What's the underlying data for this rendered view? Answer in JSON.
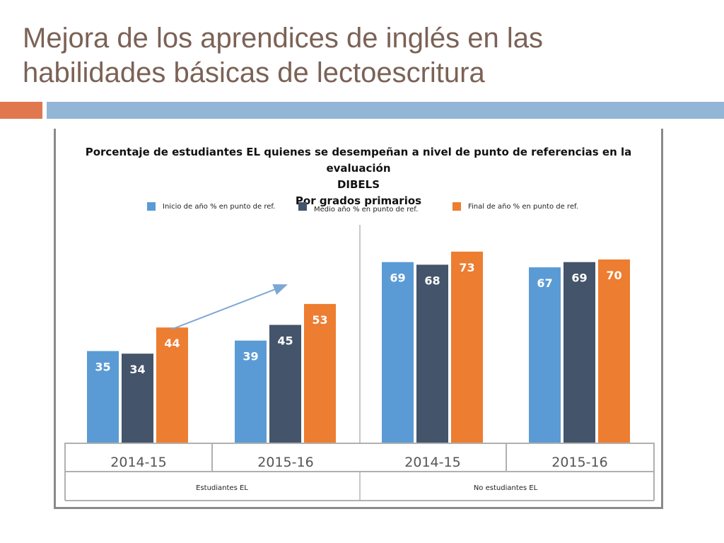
{
  "slide": {
    "title_line1": "Mejora de los aprendices de inglés en las",
    "title_line2": "habilidades básicas de lectoescritura"
  },
  "colors": {
    "title": "#7b6256",
    "accent_orange": "#e0774e",
    "accent_blue": "#93b5d6",
    "series_start": "#5b9bd5",
    "series_mid": "#44546a",
    "series_end": "#ed7d31"
  },
  "chart_data": {
    "type": "bar",
    "title_line1": "Porcentaje de estudiantes EL quienes se desempeñan a nivel de punto de referencias en la evaluación",
    "title_line2": "DIBELS",
    "title_line3": "Por grados primarios",
    "categories": [
      "2014-15",
      "2015-16",
      "2014-15",
      "2015-16"
    ],
    "groups": [
      {
        "label": "Estudiantes EL",
        "categories": [
          "2014-15",
          "2015-16"
        ]
      },
      {
        "label": "No estudiantes EL",
        "categories": [
          "2014-15",
          "2015-16"
        ]
      }
    ],
    "series": [
      {
        "name": "Inicio de año % en punto de ref.",
        "color": "#5b9bd5",
        "values": [
          35,
          39,
          69,
          67
        ]
      },
      {
        "name": "Medio  año % en punto de ref.",
        "color": "#44546a",
        "values": [
          34,
          45,
          68,
          69
        ]
      },
      {
        "name": "Final de año % en punto de ref.",
        "color": "#ed7d31",
        "values": [
          44,
          53,
          73,
          70
        ]
      }
    ],
    "ylim": [
      0,
      100
    ],
    "annotation": "trend arrow from Estudiantes EL 2014-15 final to 2015-16",
    "grid": false
  }
}
